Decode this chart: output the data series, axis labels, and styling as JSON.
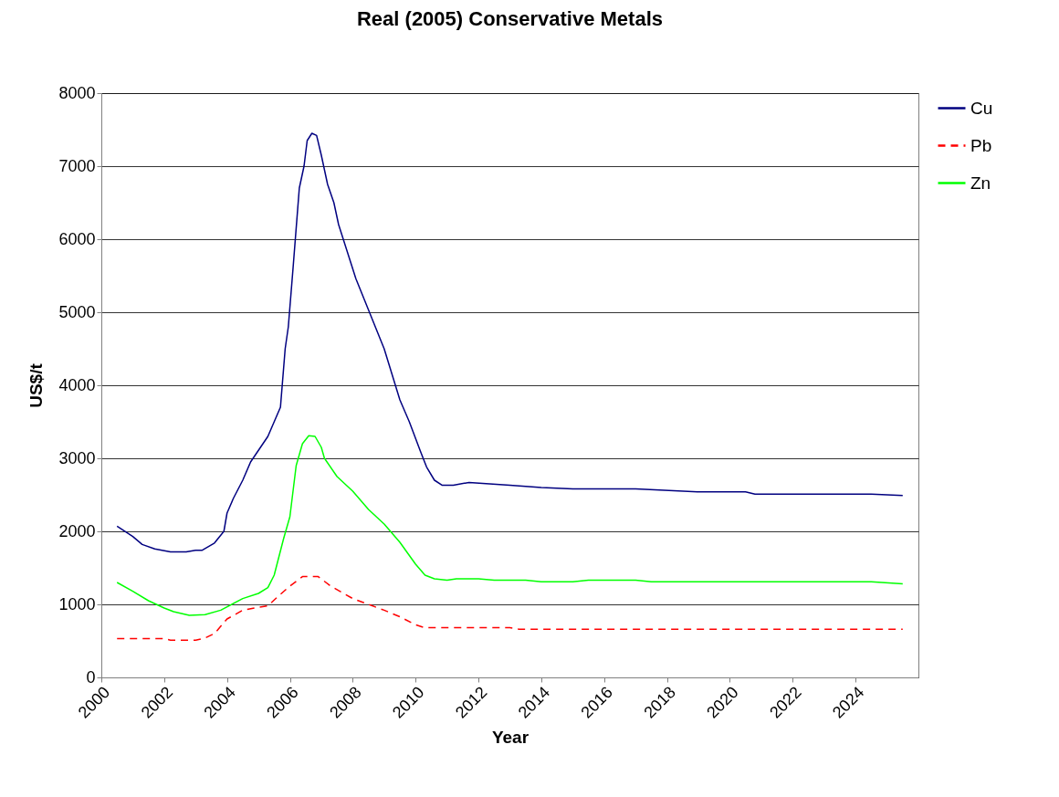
{
  "chart_data": {
    "type": "line",
    "title": "Real (2005) Conservative Metals",
    "xlabel": "Year",
    "ylabel": "US$/t",
    "xlim": [
      2000,
      2026
    ],
    "xticks": [
      2000,
      2002,
      2004,
      2006,
      2008,
      2010,
      2012,
      2014,
      2016,
      2018,
      2020,
      2022,
      2024
    ],
    "ylim": [
      0,
      8000
    ],
    "yticks": [
      0,
      1000,
      2000,
      3000,
      4000,
      5000,
      6000,
      7000,
      8000
    ],
    "grid": "y",
    "legend": "right",
    "marker": "none",
    "series": [
      {
        "name": "Cu",
        "color": "#000080",
        "line_style": "solid",
        "x": [
          2000.5,
          2001,
          2001.3,
          2001.7,
          2002.2,
          2002.7,
          2003,
          2003.2,
          2003.6,
          2003.9,
          2004,
          2004.2,
          2004.5,
          2004.75,
          2005.3,
          2005.7,
          2005.85,
          2005.95,
          2006.1,
          2006.3,
          2006.45,
          2006.55,
          2006.7,
          2006.85,
          2007,
          2007.2,
          2007.4,
          2007.55,
          2008.1,
          2009,
          2009.5,
          2009.8,
          2010.15,
          2010.35,
          2010.6,
          2010.85,
          2011.2,
          2011.7,
          2013,
          2014,
          2015,
          2017,
          2019,
          2020.5,
          2020.8,
          2024.5,
          2025.5
        ],
        "values": [
          2070,
          1930,
          1820,
          1760,
          1720,
          1720,
          1740,
          1740,
          1840,
          2000,
          2250,
          2450,
          2700,
          2950,
          3300,
          3700,
          4500,
          4800,
          5600,
          6700,
          7000,
          7350,
          7450,
          7420,
          7150,
          6750,
          6500,
          6200,
          5460,
          4500,
          3800,
          3500,
          3100,
          2880,
          2700,
          2630,
          2630,
          2670,
          2630,
          2600,
          2580,
          2580,
          2540,
          2540,
          2510,
          2510,
          2490
        ]
      },
      {
        "name": "Pb",
        "color": "#ff0000",
        "line_style": "dashed",
        "x": [
          2000.5,
          2002,
          2002.2,
          2003,
          2003.3,
          2003.6,
          2004,
          2004.5,
          2005,
          2005.3,
          2005.6,
          2006,
          2006.4,
          2006.9,
          2007.3,
          2008,
          2008.5,
          2009,
          2009.5,
          2010,
          2010.3,
          2011,
          2013,
          2013.3,
          2025.5
        ],
        "values": [
          530,
          530,
          510,
          510,
          540,
          600,
          800,
          920,
          960,
          980,
          1100,
          1250,
          1380,
          1380,
          1250,
          1080,
          1000,
          920,
          830,
          720,
          680,
          680,
          680,
          660,
          660
        ]
      },
      {
        "name": "Zn",
        "color": "#00ff00",
        "line_style": "solid",
        "x": [
          2000.5,
          2001,
          2001.5,
          2002,
          2002.3,
          2002.8,
          2003.3,
          2003.8,
          2004.5,
          2005,
          2005.3,
          2005.5,
          2005.8,
          2006,
          2006.2,
          2006.4,
          2006.6,
          2006.8,
          2007,
          2007.1,
          2007.5,
          2008,
          2008.5,
          2009,
          2009.5,
          2010,
          2010.3,
          2010.6,
          2011,
          2011.3,
          2012,
          2012.5,
          2013.5,
          2014,
          2015,
          2015.5,
          2017,
          2017.5,
          2024.5,
          2025.5
        ],
        "values": [
          1300,
          1180,
          1050,
          950,
          900,
          850,
          860,
          920,
          1080,
          1150,
          1230,
          1400,
          1900,
          2200,
          2900,
          3200,
          3310,
          3300,
          3150,
          3000,
          2750,
          2550,
          2300,
          2100,
          1850,
          1550,
          1400,
          1350,
          1330,
          1350,
          1350,
          1330,
          1330,
          1310,
          1310,
          1330,
          1330,
          1310,
          1310,
          1280
        ]
      }
    ]
  }
}
